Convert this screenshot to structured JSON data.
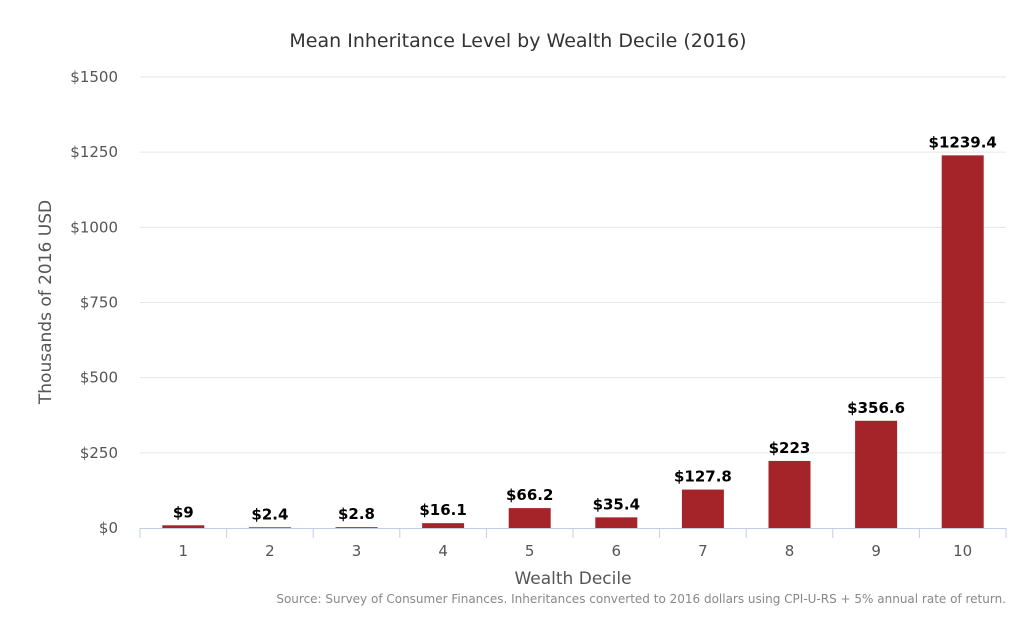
{
  "chart_data": {
    "type": "bar",
    "title": "Mean Inheritance Level by Wealth Decile (2016)",
    "xlabel": "Wealth Decile",
    "ylabel": "Thousands of 2016 USD",
    "categories": [
      "1",
      "2",
      "3",
      "4",
      "5",
      "6",
      "7",
      "8",
      "9",
      "10"
    ],
    "values": [
      9,
      2.4,
      2.8,
      16.1,
      66.2,
      35.4,
      127.8,
      223,
      356.6,
      1239.4
    ],
    "data_labels": [
      "$9",
      "$2.4",
      "$2.8",
      "$16.1",
      "$66.2",
      "$35.4",
      "$127.8",
      "$223",
      "$356.6",
      "$1239.4"
    ],
    "ylim": [
      0,
      1500
    ],
    "yticks": [
      0,
      250,
      500,
      750,
      1000,
      1250,
      1500
    ],
    "ytick_labels": [
      "$0",
      "$250",
      "$500",
      "$750",
      "$1000",
      "$1250",
      "$1500"
    ],
    "grid": true,
    "legend": "none",
    "bar_color": "#a5242a",
    "source": "Source: Survey of Consumer Finances. Inheritances converted to 2016 dollars using CPI-U-RS + 5% annual rate of return."
  }
}
